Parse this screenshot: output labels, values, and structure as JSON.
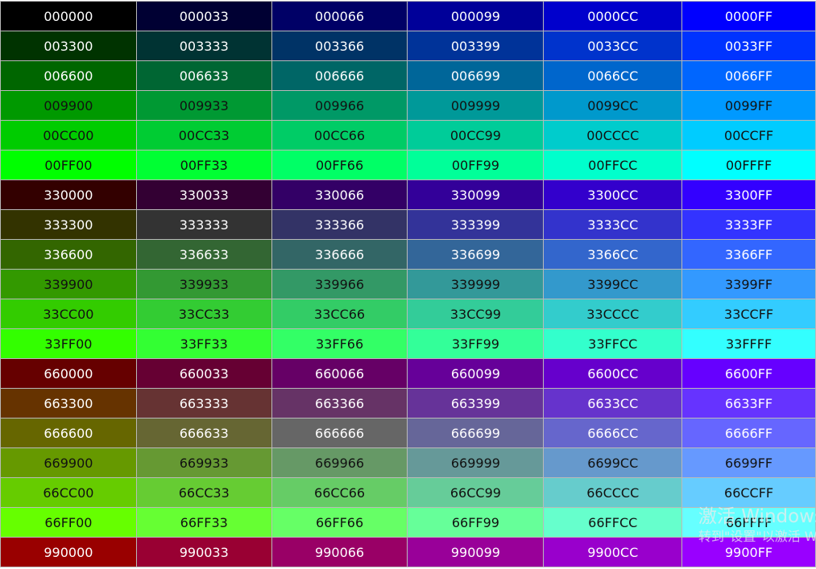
{
  "rows": [
    [
      "000000",
      "000033",
      "000066",
      "000099",
      "0000CC",
      "0000FF"
    ],
    [
      "003300",
      "003333",
      "003366",
      "003399",
      "0033CC",
      "0033FF"
    ],
    [
      "006600",
      "006633",
      "006666",
      "006699",
      "0066CC",
      "0066FF"
    ],
    [
      "009900",
      "009933",
      "009966",
      "009999",
      "0099CC",
      "0099FF"
    ],
    [
      "00CC00",
      "00CC33",
      "00CC66",
      "00CC99",
      "00CCCC",
      "00CCFF"
    ],
    [
      "00FF00",
      "00FF33",
      "00FF66",
      "00FF99",
      "00FFCC",
      "00FFFF"
    ],
    [
      "330000",
      "330033",
      "330066",
      "330099",
      "3300CC",
      "3300FF"
    ],
    [
      "333300",
      "333333",
      "333366",
      "333399",
      "3333CC",
      "3333FF"
    ],
    [
      "336600",
      "336633",
      "336666",
      "336699",
      "3366CC",
      "3366FF"
    ],
    [
      "339900",
      "339933",
      "339966",
      "339999",
      "3399CC",
      "3399FF"
    ],
    [
      "33CC00",
      "33CC33",
      "33CC66",
      "33CC99",
      "33CCCC",
      "33CCFF"
    ],
    [
      "33FF00",
      "33FF33",
      "33FF66",
      "33FF99",
      "33FFCC",
      "33FFFF"
    ],
    [
      "660000",
      "660033",
      "660066",
      "660099",
      "6600CC",
      "6600FF"
    ],
    [
      "663300",
      "663333",
      "663366",
      "663399",
      "6633CC",
      "6633FF"
    ],
    [
      "666600",
      "666633",
      "666666",
      "666699",
      "6666CC",
      "6666FF"
    ],
    [
      "669900",
      "669933",
      "669966",
      "669999",
      "6699CC",
      "6699FF"
    ],
    [
      "66CC00",
      "66CC33",
      "66CC66",
      "66CC99",
      "66CCCC",
      "66CCFF"
    ],
    [
      "66FF00",
      "66FF33",
      "66FF66",
      "66FF99",
      "66FFCC",
      "66FFFF"
    ],
    [
      "990000",
      "990033",
      "990066",
      "990099",
      "9900CC",
      "9900FF"
    ]
  ],
  "text_colors": {
    "light": "#ffffff",
    "dark": "#111111"
  },
  "watermark": {
    "title": "激活 Windows",
    "subtitle": "转到\"设置\"以激活 Windows。"
  }
}
